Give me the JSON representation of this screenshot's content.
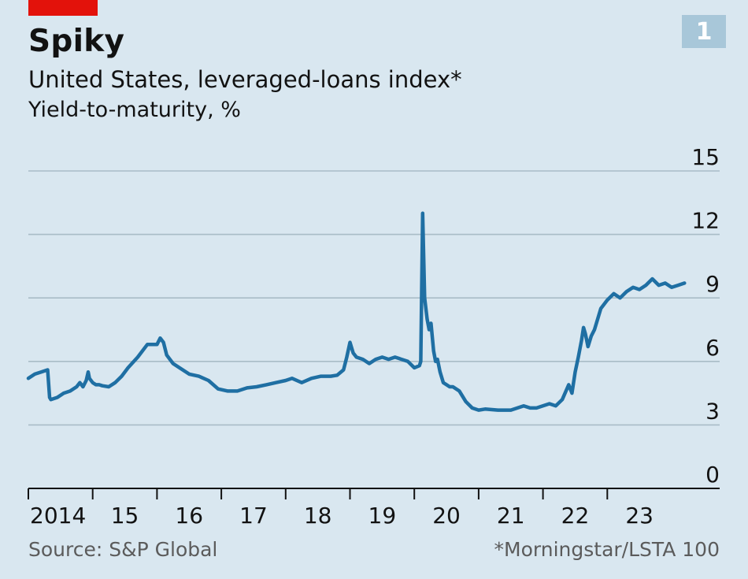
{
  "header": {
    "chart_number": "1",
    "title": "Spiky",
    "subtitle": "United States, leveraged-loans index*",
    "unit": "Yield-to-maturity, %"
  },
  "footer": {
    "source": "Source: S&P Global",
    "note": "*Morningstar/LSTA 100"
  },
  "colors": {
    "background": "#d9e7f0",
    "line": "#1f6fa3",
    "gridline": "#a9bcc7",
    "brand_red": "#e3120b",
    "tag": "#a8c7d9"
  },
  "chart_data": {
    "type": "line",
    "title": "Spiky",
    "subtitle": "United States, leveraged-loans index*",
    "ylabel": "Yield-to-maturity, %",
    "ylim": [
      0,
      15
    ],
    "yticks": [
      0,
      3,
      6,
      9,
      12,
      15
    ],
    "xlim": [
      2014.0,
      2024.8
    ],
    "xticks": [
      {
        "value": 2014.5,
        "label": "2014"
      },
      {
        "value": 2015.5,
        "label": "15"
      },
      {
        "value": 2016.5,
        "label": "16"
      },
      {
        "value": 2017.5,
        "label": "17"
      },
      {
        "value": 2018.5,
        "label": "18"
      },
      {
        "value": 2019.5,
        "label": "19"
      },
      {
        "value": 2020.5,
        "label": "20"
      },
      {
        "value": 2021.5,
        "label": "21"
      },
      {
        "value": 2022.5,
        "label": "22"
      },
      {
        "value": 2023.5,
        "label": "23"
      }
    ],
    "grid": true,
    "series": [
      {
        "x": [
          2014.0,
          2014.1,
          2014.2,
          2014.3,
          2014.33,
          2014.35,
          2014.45,
          2014.55,
          2014.65,
          2014.75,
          2014.8,
          2014.85,
          2014.9,
          2014.93,
          2014.95,
          2015.0,
          2015.05,
          2015.1,
          2015.15,
          2015.25,
          2015.35,
          2015.45,
          2015.55,
          2015.7,
          2015.85,
          2016.0,
          2016.05,
          2016.1,
          2016.15,
          2016.25,
          2016.35,
          2016.5,
          2016.65,
          2016.8,
          2016.95,
          2017.1,
          2017.25,
          2017.4,
          2017.55,
          2017.7,
          2017.85,
          2018.0,
          2018.1,
          2018.25,
          2018.4,
          2018.55,
          2018.7,
          2018.8,
          2018.9,
          2018.95,
          2019.0,
          2019.05,
          2019.1,
          2019.2,
          2019.3,
          2019.4,
          2019.5,
          2019.6,
          2019.7,
          2019.8,
          2019.9,
          2020.0,
          2020.08,
          2020.1,
          2020.13,
          2020.16,
          2020.2,
          2020.23,
          2020.26,
          2020.3,
          2020.33,
          2020.36,
          2020.4,
          2020.45,
          2020.5,
          2020.55,
          2020.6,
          2020.7,
          2020.8,
          2020.9,
          2021.0,
          2021.1,
          2021.3,
          2021.5,
          2021.7,
          2021.8,
          2021.9,
          2022.1,
          2022.2,
          2022.3,
          2022.4,
          2022.45,
          2022.5,
          2022.55,
          2022.6,
          2022.63,
          2022.66,
          2022.7,
          2022.75,
          2022.8,
          2022.9,
          2023.0,
          2023.1,
          2023.2,
          2023.3,
          2023.4,
          2023.5,
          2023.6,
          2023.7,
          2023.8,
          2023.9,
          2024.0,
          2024.1,
          2024.2
        ],
        "y": [
          5.2,
          5.4,
          5.5,
          5.6,
          4.3,
          4.2,
          4.3,
          4.5,
          4.6,
          4.8,
          5.0,
          4.8,
          5.1,
          5.5,
          5.2,
          5.0,
          4.9,
          4.9,
          4.85,
          4.8,
          5.0,
          5.3,
          5.7,
          6.2,
          6.8,
          6.8,
          7.1,
          6.9,
          6.3,
          5.9,
          5.7,
          5.4,
          5.3,
          5.1,
          4.7,
          4.6,
          4.6,
          4.75,
          4.8,
          4.9,
          5.0,
          5.1,
          5.2,
          5.0,
          5.2,
          5.3,
          5.3,
          5.35,
          5.6,
          6.2,
          6.9,
          6.4,
          6.2,
          6.1,
          5.9,
          6.1,
          6.2,
          6.1,
          6.2,
          6.1,
          6.0,
          5.7,
          5.8,
          6.0,
          13.0,
          9.0,
          8.0,
          7.5,
          7.8,
          6.5,
          6.0,
          6.1,
          5.5,
          5.0,
          4.9,
          4.8,
          4.8,
          4.6,
          4.1,
          3.8,
          3.7,
          3.75,
          3.7,
          3.7,
          3.9,
          3.8,
          3.8,
          4.0,
          3.9,
          4.2,
          4.9,
          4.5,
          5.5,
          6.2,
          7.0,
          7.6,
          7.3,
          6.7,
          7.2,
          7.5,
          8.5,
          8.9,
          9.2,
          9.0,
          9.3,
          9.5,
          9.4,
          9.6,
          9.9,
          9.6,
          9.7,
          9.5,
          9.6,
          9.7
        ]
      }
    ]
  }
}
